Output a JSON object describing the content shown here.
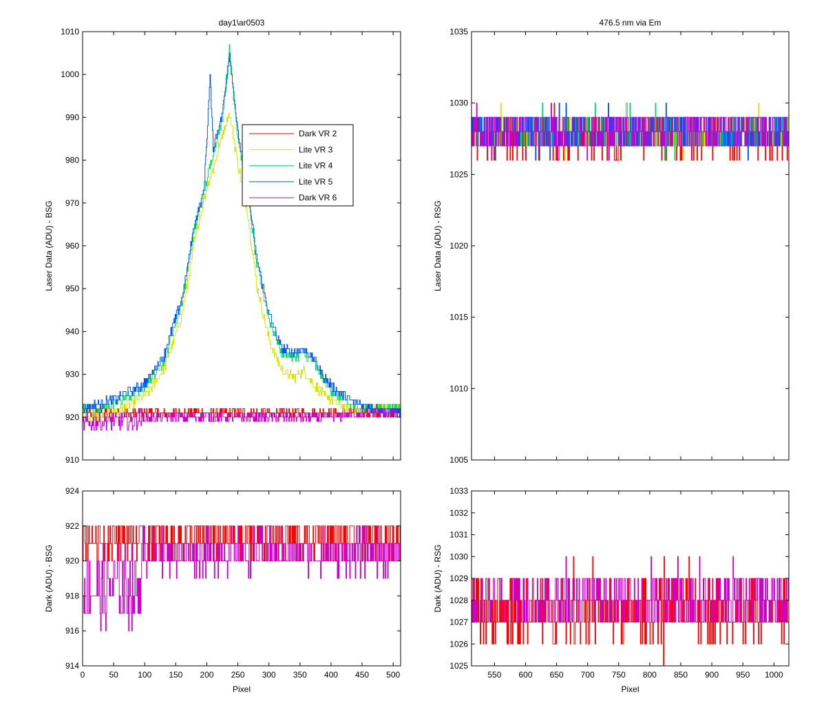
{
  "chart_data": [
    {
      "id": "top-left",
      "type": "line",
      "title": "day1\\ar0503",
      "xlabel": "",
      "ylabel": "Laser Data (ADU) - BSG",
      "xlim": [
        0,
        512
      ],
      "ylim": [
        910,
        1010
      ],
      "xticks": [
        0,
        50,
        100,
        150,
        200,
        250,
        300,
        350,
        400,
        450,
        500
      ],
      "xtick_labels_visible": false,
      "yticks": [
        910,
        920,
        930,
        940,
        950,
        960,
        970,
        980,
        990,
        1000,
        1010
      ],
      "legend_position": "inside-upper-middle",
      "series": [
        {
          "name": "Dark VR 2",
          "color": "#ff0000",
          "x": [
            0,
            25,
            50,
            100,
            150,
            200,
            250,
            300,
            350,
            400,
            450,
            500,
            512
          ],
          "y": [
            921,
            921,
            921,
            921,
            921,
            921,
            921,
            921,
            921,
            921,
            921,
            921,
            921
          ]
        },
        {
          "name": "Lite VR 3",
          "color": "#d4e600",
          "x": [
            0,
            20,
            50,
            100,
            130,
            160,
            180,
            195,
            210,
            225,
            236,
            250,
            265,
            280,
            300,
            320,
            340,
            355,
            370,
            390,
            410,
            430,
            450,
            470,
            490,
            512
          ],
          "y": [
            920,
            920,
            921,
            925,
            931,
            944,
            961,
            971,
            978,
            986,
            991,
            979,
            968,
            951,
            938,
            931,
            929,
            931,
            928,
            925,
            923,
            922,
            922,
            922,
            922,
            922
          ]
        },
        {
          "name": "Lite VR 4",
          "color": "#00e060",
          "x": [
            0,
            20,
            50,
            100,
            130,
            160,
            180,
            195,
            210,
            225,
            236,
            250,
            265,
            280,
            300,
            320,
            340,
            355,
            370,
            390,
            410,
            430,
            450,
            470,
            490,
            512
          ],
          "y": [
            922,
            922,
            923,
            927,
            933,
            947,
            964,
            972,
            982,
            990,
            1006,
            985,
            973,
            956,
            943,
            935,
            934,
            935,
            933,
            928,
            925,
            923,
            922,
            922,
            922,
            922
          ]
        },
        {
          "name": "Lite VR 5",
          "color": "#0050ff",
          "x": [
            0,
            20,
            50,
            100,
            130,
            160,
            180,
            195,
            205,
            210,
            225,
            236,
            250,
            265,
            280,
            300,
            320,
            340,
            355,
            370,
            390,
            410,
            430,
            450,
            470,
            490,
            512
          ],
          "y": [
            922,
            923,
            924,
            928,
            934,
            948,
            965,
            973,
            999,
            983,
            991,
            1005,
            986,
            974,
            957,
            944,
            936,
            935,
            936,
            934,
            929,
            926,
            924,
            923,
            922,
            921,
            921
          ]
        },
        {
          "name": "Dark VR 6",
          "color": "#cc00cc",
          "x": [
            0,
            20,
            50,
            80,
            100,
            150,
            200,
            250,
            300,
            350,
            400,
            450,
            500,
            512
          ],
          "y": [
            918,
            919,
            919,
            919,
            920,
            920,
            920,
            920,
            920,
            920,
            920,
            921,
            921,
            921
          ]
        }
      ]
    },
    {
      "id": "top-right",
      "type": "line",
      "title": "476.5 nm via Em",
      "xlabel": "",
      "ylabel": "Laser Data (ADU) - RSG",
      "xlim": [
        513,
        1024
      ],
      "ylim": [
        1005,
        1035
      ],
      "xticks": [
        550,
        600,
        650,
        700,
        750,
        800,
        850,
        900,
        950,
        1000
      ],
      "xtick_labels_visible": false,
      "yticks": [
        1005,
        1010,
        1015,
        1020,
        1025,
        1030,
        1035
      ],
      "series": [
        {
          "name": "Dark VR 2",
          "color": "#ff0000",
          "x": [
            513,
            1024
          ],
          "y": [
            1027.5,
            1027.5
          ]
        },
        {
          "name": "Lite VR 3",
          "color": "#d4e600",
          "x": [
            513,
            1024
          ],
          "y": [
            1028,
            1028
          ]
        },
        {
          "name": "Lite VR 4",
          "color": "#00e060",
          "x": [
            513,
            1024
          ],
          "y": [
            1028,
            1028
          ]
        },
        {
          "name": "Lite VR 5",
          "color": "#0050ff",
          "x": [
            513,
            1024
          ],
          "y": [
            1028,
            1028
          ]
        },
        {
          "name": "Dark VR 6",
          "color": "#cc00cc",
          "x": [
            513,
            1024
          ],
          "y": [
            1028,
            1028
          ]
        }
      ]
    },
    {
      "id": "bottom-left",
      "type": "line",
      "title": "",
      "xlabel": "Pixel",
      "ylabel": "Dark (ADU) - BSG",
      "xlim": [
        0,
        512
      ],
      "ylim": [
        914,
        924
      ],
      "xticks": [
        0,
        50,
        100,
        150,
        200,
        250,
        300,
        350,
        400,
        450,
        500
      ],
      "xtick_labels_visible": true,
      "yticks": [
        914,
        916,
        918,
        920,
        922,
        924
      ],
      "series": [
        {
          "name": "Dark VR 2",
          "color": "#ff0000",
          "x": [
            0,
            512
          ],
          "y": [
            921.3,
            921.3
          ]
        },
        {
          "name": "Dark VR 6",
          "color": "#cc00cc",
          "x": [
            0,
            90,
            100,
            512
          ],
          "y": [
            918.5,
            918.5,
            920.5,
            920.5
          ]
        }
      ]
    },
    {
      "id": "bottom-right",
      "type": "line",
      "title": "",
      "xlabel": "Pixel",
      "ylabel": "Dark (ADU) - RSG",
      "xlim": [
        513,
        1024
      ],
      "ylim": [
        1025,
        1033
      ],
      "xticks": [
        550,
        600,
        650,
        700,
        750,
        800,
        850,
        900,
        950,
        1000
      ],
      "xtick_labels_visible": true,
      "yticks": [
        1025,
        1026,
        1027,
        1028,
        1029,
        1030,
        1031,
        1032,
        1033
      ],
      "series": [
        {
          "name": "Dark VR 2",
          "color": "#ff0000",
          "x": [
            513,
            1024
          ],
          "y": [
            1027.5,
            1027.5
          ]
        },
        {
          "name": "Dark VR 6",
          "color": "#cc00cc",
          "x": [
            513,
            1024
          ],
          "y": [
            1028,
            1028
          ]
        }
      ]
    }
  ]
}
